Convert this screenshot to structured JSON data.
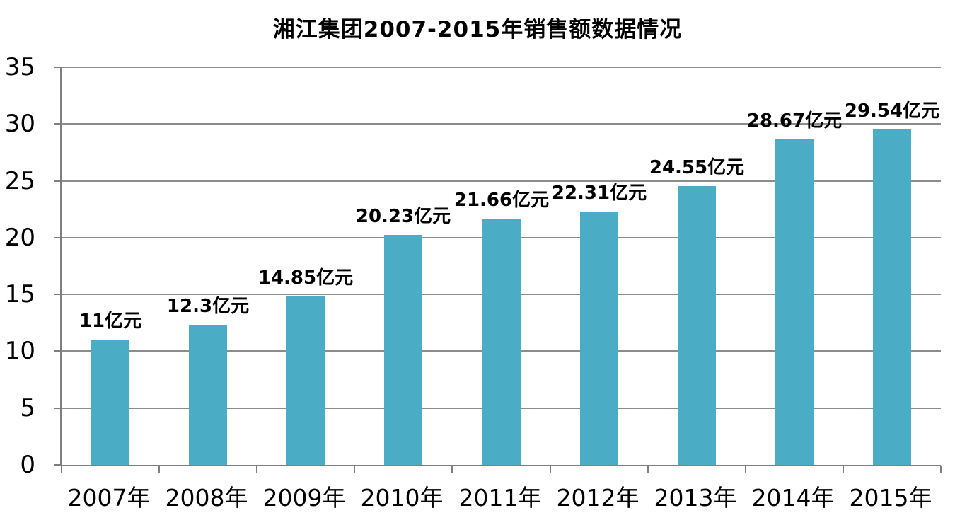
{
  "colors": {
    "bar": "#4BACC6",
    "gridline": "#8c8c8c",
    "axis": "#7f7f7f",
    "text": "#000000",
    "background": "#ffffff"
  },
  "chart_data": {
    "type": "bar",
    "title": "湘江集团2007-2015年销售额数据情况",
    "categories": [
      "2007年",
      "2008年",
      "2009年",
      "2010年",
      "2011年",
      "2012年",
      "2013年",
      "2014年",
      "2015年"
    ],
    "values": [
      11,
      12.3,
      14.85,
      20.23,
      21.66,
      22.31,
      24.55,
      28.67,
      29.54
    ],
    "data_labels": [
      "11亿元",
      "12.3亿元",
      "14.85亿元",
      "20.23亿元",
      "21.66亿元",
      "22.31亿元",
      "24.55亿元",
      "28.67亿元",
      "29.54亿元"
    ],
    "unit_suffix": "亿元",
    "xlabel": "",
    "ylabel": "",
    "ylim": [
      0,
      35
    ],
    "yticks": [
      0,
      5,
      10,
      15,
      20,
      25,
      30,
      35
    ],
    "y_tick_labels": [
      "0",
      "5",
      "10",
      "15",
      "20",
      "25",
      "30",
      "35"
    ],
    "grid": true,
    "legend": false
  }
}
